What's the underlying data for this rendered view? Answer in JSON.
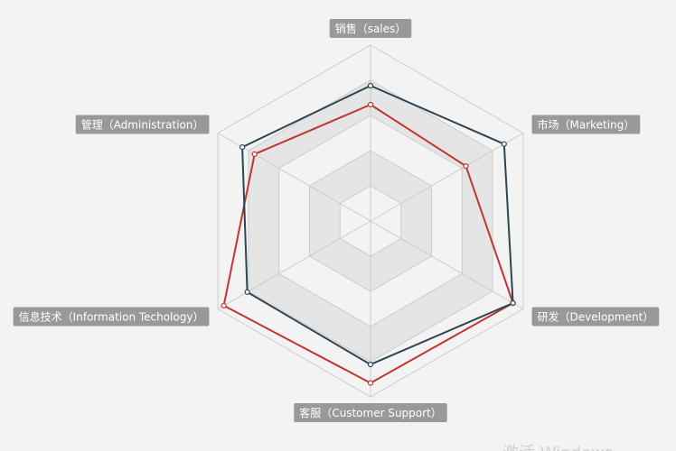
{
  "chart_data": {
    "type": "radar",
    "indicators": [
      {
        "name": "销售（sales）",
        "max": 6500
      },
      {
        "name": "市场（Marketing）",
        "max": 16000
      },
      {
        "name": "研发（Development）",
        "max": 30000
      },
      {
        "name": "客服（Customer Support）",
        "max": 38000
      },
      {
        "name": "信息技术（Information Techology）",
        "max": 52000
      },
      {
        "name": "管理（Administration）",
        "max": 25000
      }
    ],
    "series": [
      {
        "values": [
          4300,
          10000,
          28000,
          35000,
          50000,
          19000
        ],
        "color": "#c23531"
      },
      {
        "values": [
          5000,
          14000,
          28000,
          31000,
          42000,
          21000
        ],
        "color": "#2f4554"
      }
    ],
    "split_number": 5,
    "split_area_colors": [
      "#f3f3f3",
      "#e5e5e5"
    ],
    "split_line_color": "#cccccc"
  },
  "watermark": "激活 Windows"
}
